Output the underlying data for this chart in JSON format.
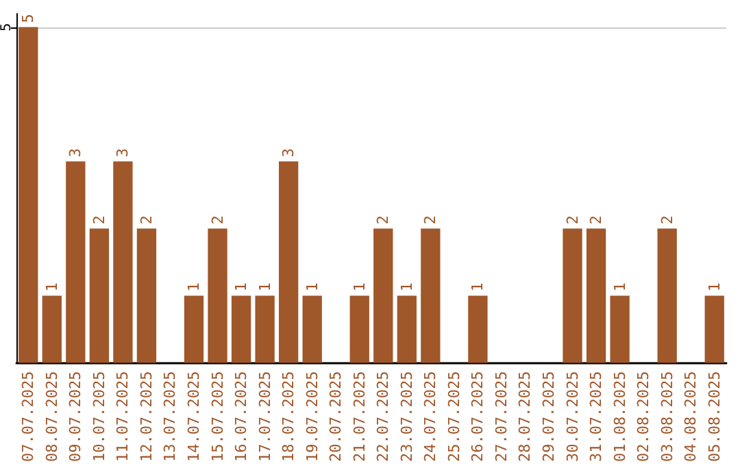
{
  "chart_data": {
    "type": "bar",
    "categories": [
      "07.07.2025",
      "08.07.2025",
      "09.07.2025",
      "10.07.2025",
      "11.07.2025",
      "12.07.2025",
      "13.07.2025",
      "14.07.2025",
      "15.07.2025",
      "16.07.2025",
      "17.07.2025",
      "18.07.2025",
      "19.07.2025",
      "20.07.2025",
      "21.07.2025",
      "22.07.2025",
      "23.07.2025",
      "24.07.2025",
      "25.07.2025",
      "26.07.2025",
      "27.07.2025",
      "28.07.2025",
      "29.07.2025",
      "30.07.2025",
      "31.07.2025",
      "01.08.2025",
      "02.08.2025",
      "03.08.2025",
      "04.08.2025",
      "05.08.2025"
    ],
    "values": [
      5,
      1,
      3,
      2,
      3,
      2,
      0,
      1,
      2,
      1,
      1,
      3,
      1,
      0,
      1,
      2,
      1,
      2,
      0,
      1,
      0,
      0,
      0,
      2,
      2,
      1,
      0,
      2,
      0,
      1
    ],
    "value_labels": [
      "5",
      "1",
      "3",
      "2",
      "3",
      "2",
      null,
      "1",
      "2",
      "1",
      "1",
      "3",
      "1",
      null,
      "1",
      "2",
      "1",
      "2",
      null,
      "1",
      null,
      null,
      null,
      "2",
      "2",
      "1",
      null,
      "2",
      null,
      "1"
    ],
    "color": "#a0572a",
    "ylim": [
      0,
      5.2
    ],
    "yticks": [
      5
    ],
    "grid": "y"
  }
}
